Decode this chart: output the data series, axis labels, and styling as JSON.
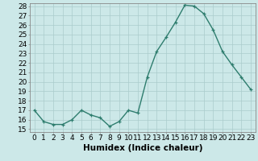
{
  "x": [
    0,
    1,
    2,
    3,
    4,
    5,
    6,
    7,
    8,
    9,
    10,
    11,
    12,
    13,
    14,
    15,
    16,
    17,
    18,
    19,
    20,
    21,
    22,
    23
  ],
  "y": [
    17,
    15.8,
    15.5,
    15.5,
    16.0,
    17.0,
    16.5,
    16.2,
    15.3,
    15.8,
    17.0,
    16.7,
    20.5,
    23.2,
    24.7,
    26.3,
    28.1,
    28.0,
    27.2,
    25.5,
    23.2,
    21.8,
    20.5,
    19.2
  ],
  "line_color": "#2e7d6e",
  "bg_color": "#cce8e8",
  "grid_color": "#aacccc",
  "xlabel": "Humidex (Indice chaleur)",
  "ylim_min": 15,
  "ylim_max": 28,
  "xlim_min": 0,
  "xlim_max": 23,
  "yticks": [
    15,
    16,
    17,
    18,
    19,
    20,
    21,
    22,
    23,
    24,
    25,
    26,
    27,
    28
  ],
  "xticks": [
    0,
    1,
    2,
    3,
    4,
    5,
    6,
    7,
    8,
    9,
    10,
    11,
    12,
    13,
    14,
    15,
    16,
    17,
    18,
    19,
    20,
    21,
    22,
    23
  ],
  "marker": "+",
  "marker_size": 3.5,
  "line_width": 1.0,
  "tick_fontsize": 6.5,
  "xlabel_fontsize": 7.5
}
